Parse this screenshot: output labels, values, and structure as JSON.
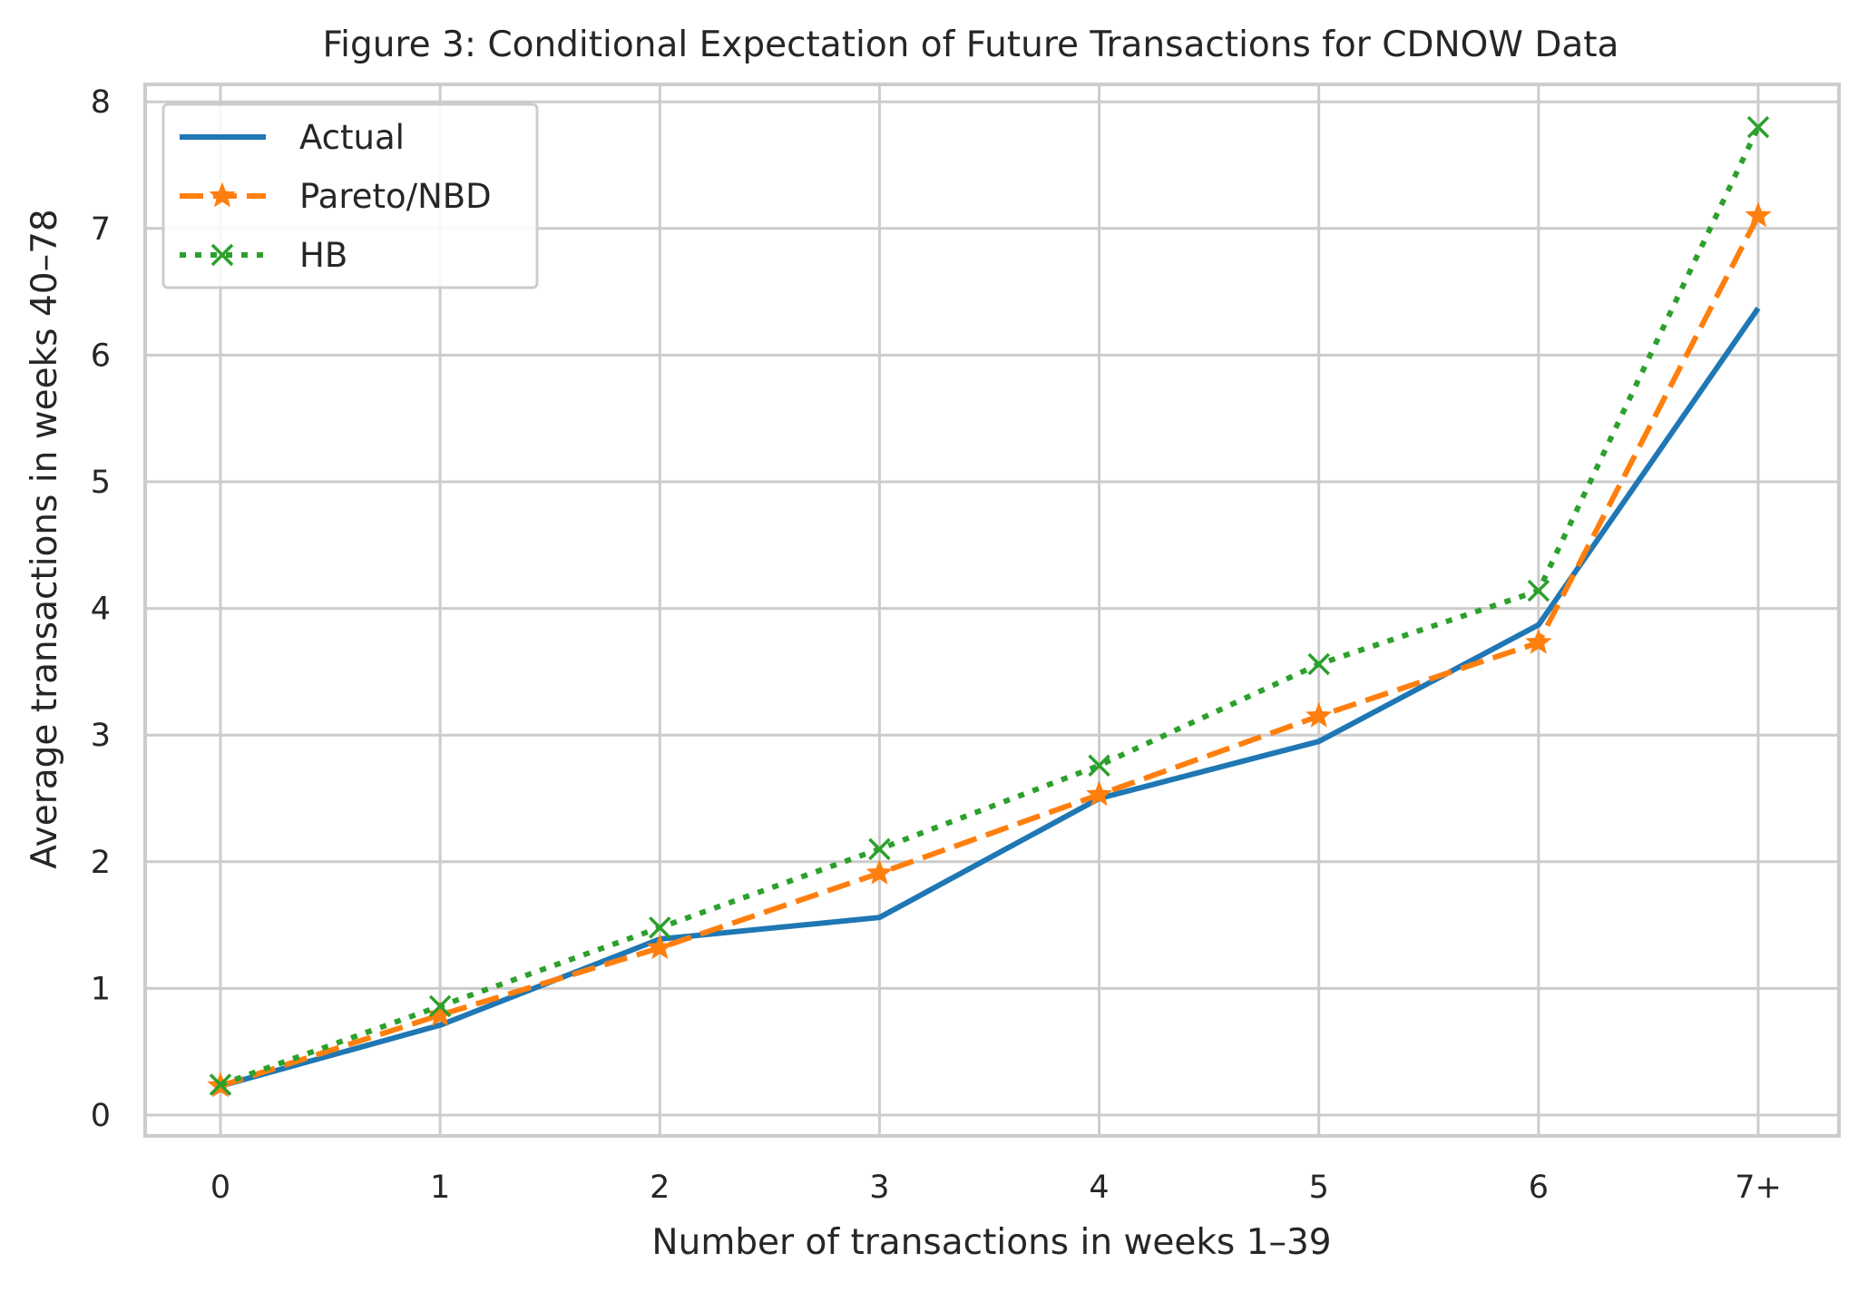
{
  "chart_data": {
    "type": "line",
    "title": "Figure 3: Conditional Expectation of Future Transactions for CDNOW Data",
    "xlabel": "Number of transactions in weeks 1–39",
    "ylabel": "Average transactions in weeks 40–78",
    "categories": [
      "0",
      "1",
      "2",
      "3",
      "4",
      "5",
      "6",
      "7+"
    ],
    "yticks": [
      "0",
      "1",
      "2",
      "3",
      "4",
      "5",
      "6",
      "7",
      "8"
    ],
    "ylim": [
      -0.15,
      8.15
    ],
    "grid": true,
    "legend_position": "top-left",
    "series": [
      {
        "name": "Actual",
        "values": [
          0.23,
          0.71,
          1.39,
          1.56,
          2.5,
          2.95,
          3.87,
          6.37
        ],
        "color": "#1f77b4",
        "line_style": "solid",
        "marker": "none"
      },
      {
        "name": "Pareto/NBD",
        "values": [
          0.23,
          0.79,
          1.32,
          1.91,
          2.53,
          3.15,
          3.73,
          7.1
        ],
        "color": "#ff7f0e",
        "line_style": "dashed",
        "marker": "star"
      },
      {
        "name": "HB",
        "values": [
          0.24,
          0.86,
          1.48,
          2.1,
          2.76,
          3.56,
          4.14,
          7.8
        ],
        "color": "#2ca02c",
        "line_style": "dotted",
        "marker": "x"
      }
    ]
  }
}
